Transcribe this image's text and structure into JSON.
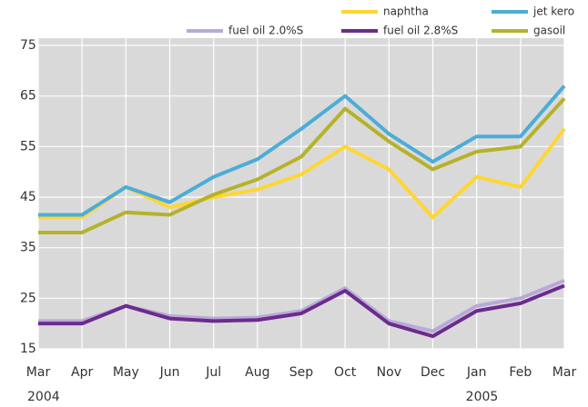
{
  "chart_data": {
    "type": "line",
    "categories": [
      "Mar",
      "Apr",
      "May",
      "Jun",
      "Jul",
      "Aug",
      "Sep",
      "Oct",
      "Nov",
      "Dec",
      "Jan",
      "Feb",
      "Mar"
    ],
    "category_years": [
      "2004",
      null,
      null,
      null,
      null,
      null,
      null,
      null,
      null,
      null,
      "2005",
      null,
      null
    ],
    "ylim": [
      15,
      75
    ],
    "yticks": [
      15,
      25,
      35,
      45,
      55,
      65,
      75
    ],
    "grid": true,
    "background": "#d9d9d9",
    "series": [
      {
        "name": "fuel oil 2.0%S",
        "color": "#b9a9da",
        "values": [
          20.5,
          20.5,
          23.5,
          21.5,
          21,
          21.2,
          22.5,
          27,
          20.5,
          18.5,
          23.5,
          25,
          28.5
        ]
      },
      {
        "name": "naphtha",
        "color": "#ffd633",
        "values": [
          41,
          41,
          47,
          43,
          45,
          46.5,
          49.5,
          55,
          50.5,
          41,
          49,
          47,
          58.5
        ]
      },
      {
        "name": "fuel oil 2.8%S",
        "color": "#6b2c8c",
        "values": [
          20,
          20,
          23.5,
          21,
          20.5,
          20.7,
          22,
          26.5,
          20,
          17.5,
          22.5,
          24,
          27.5
        ]
      },
      {
        "name": "jet kero",
        "color": "#4badd7",
        "values": [
          41.5,
          41.5,
          47,
          44,
          49,
          52.5,
          58.5,
          65,
          57.5,
          52,
          57,
          57,
          67
        ]
      },
      {
        "name": "gasoil",
        "color": "#b5b22a",
        "values": [
          38,
          38,
          42,
          41.5,
          45.5,
          48.5,
          53,
          62.5,
          56,
          50.5,
          54,
          55,
          64.5
        ]
      }
    ]
  }
}
